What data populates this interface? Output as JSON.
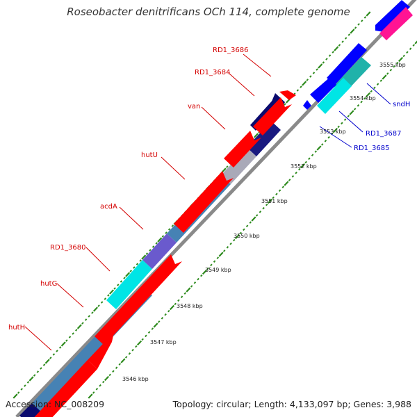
{
  "title": "Roseobacter denitrificans OCh 114, complete genome",
  "footer": {
    "accession": "Accession: NC_008209",
    "summary": "Topology: circular; Length: 4,133,097 bp; Genes: 3,988"
  },
  "colors": {
    "background": "#ffffff",
    "backbone": "#8a8a8a",
    "tick_major": "#2e8b1e",
    "tick_minor": "#2e8b1e",
    "label_red": "#d40000",
    "label_blue": "#0000cc",
    "forward_gene": "#ff0000",
    "steelblue": "#4682b4",
    "navy": "#0a0a6e",
    "slateblue": "#6a5acd",
    "cyan": "#00e5e5",
    "silver": "#a9a9b8",
    "blue": "#0000ff",
    "teal": "#20b2aa",
    "magenta": "#ff1493"
  },
  "scale_ticks": [
    "3546 kbp",
    "3547 kbp",
    "3548 kbp",
    "3549 kbp",
    "3550 kbp",
    "3551 kbp",
    "3552 kbp",
    "3553 kbp",
    "3554 kbp",
    "3555 kbp"
  ],
  "gene_labels_left": [
    "RD1_3686",
    "RD1_3684",
    "van",
    "hutU",
    "acdA",
    "RD1_3680",
    "hutG",
    "hutH"
  ],
  "gene_labels_right": [
    "sndH",
    "RD1_3687",
    "RD1_3685"
  ]
}
